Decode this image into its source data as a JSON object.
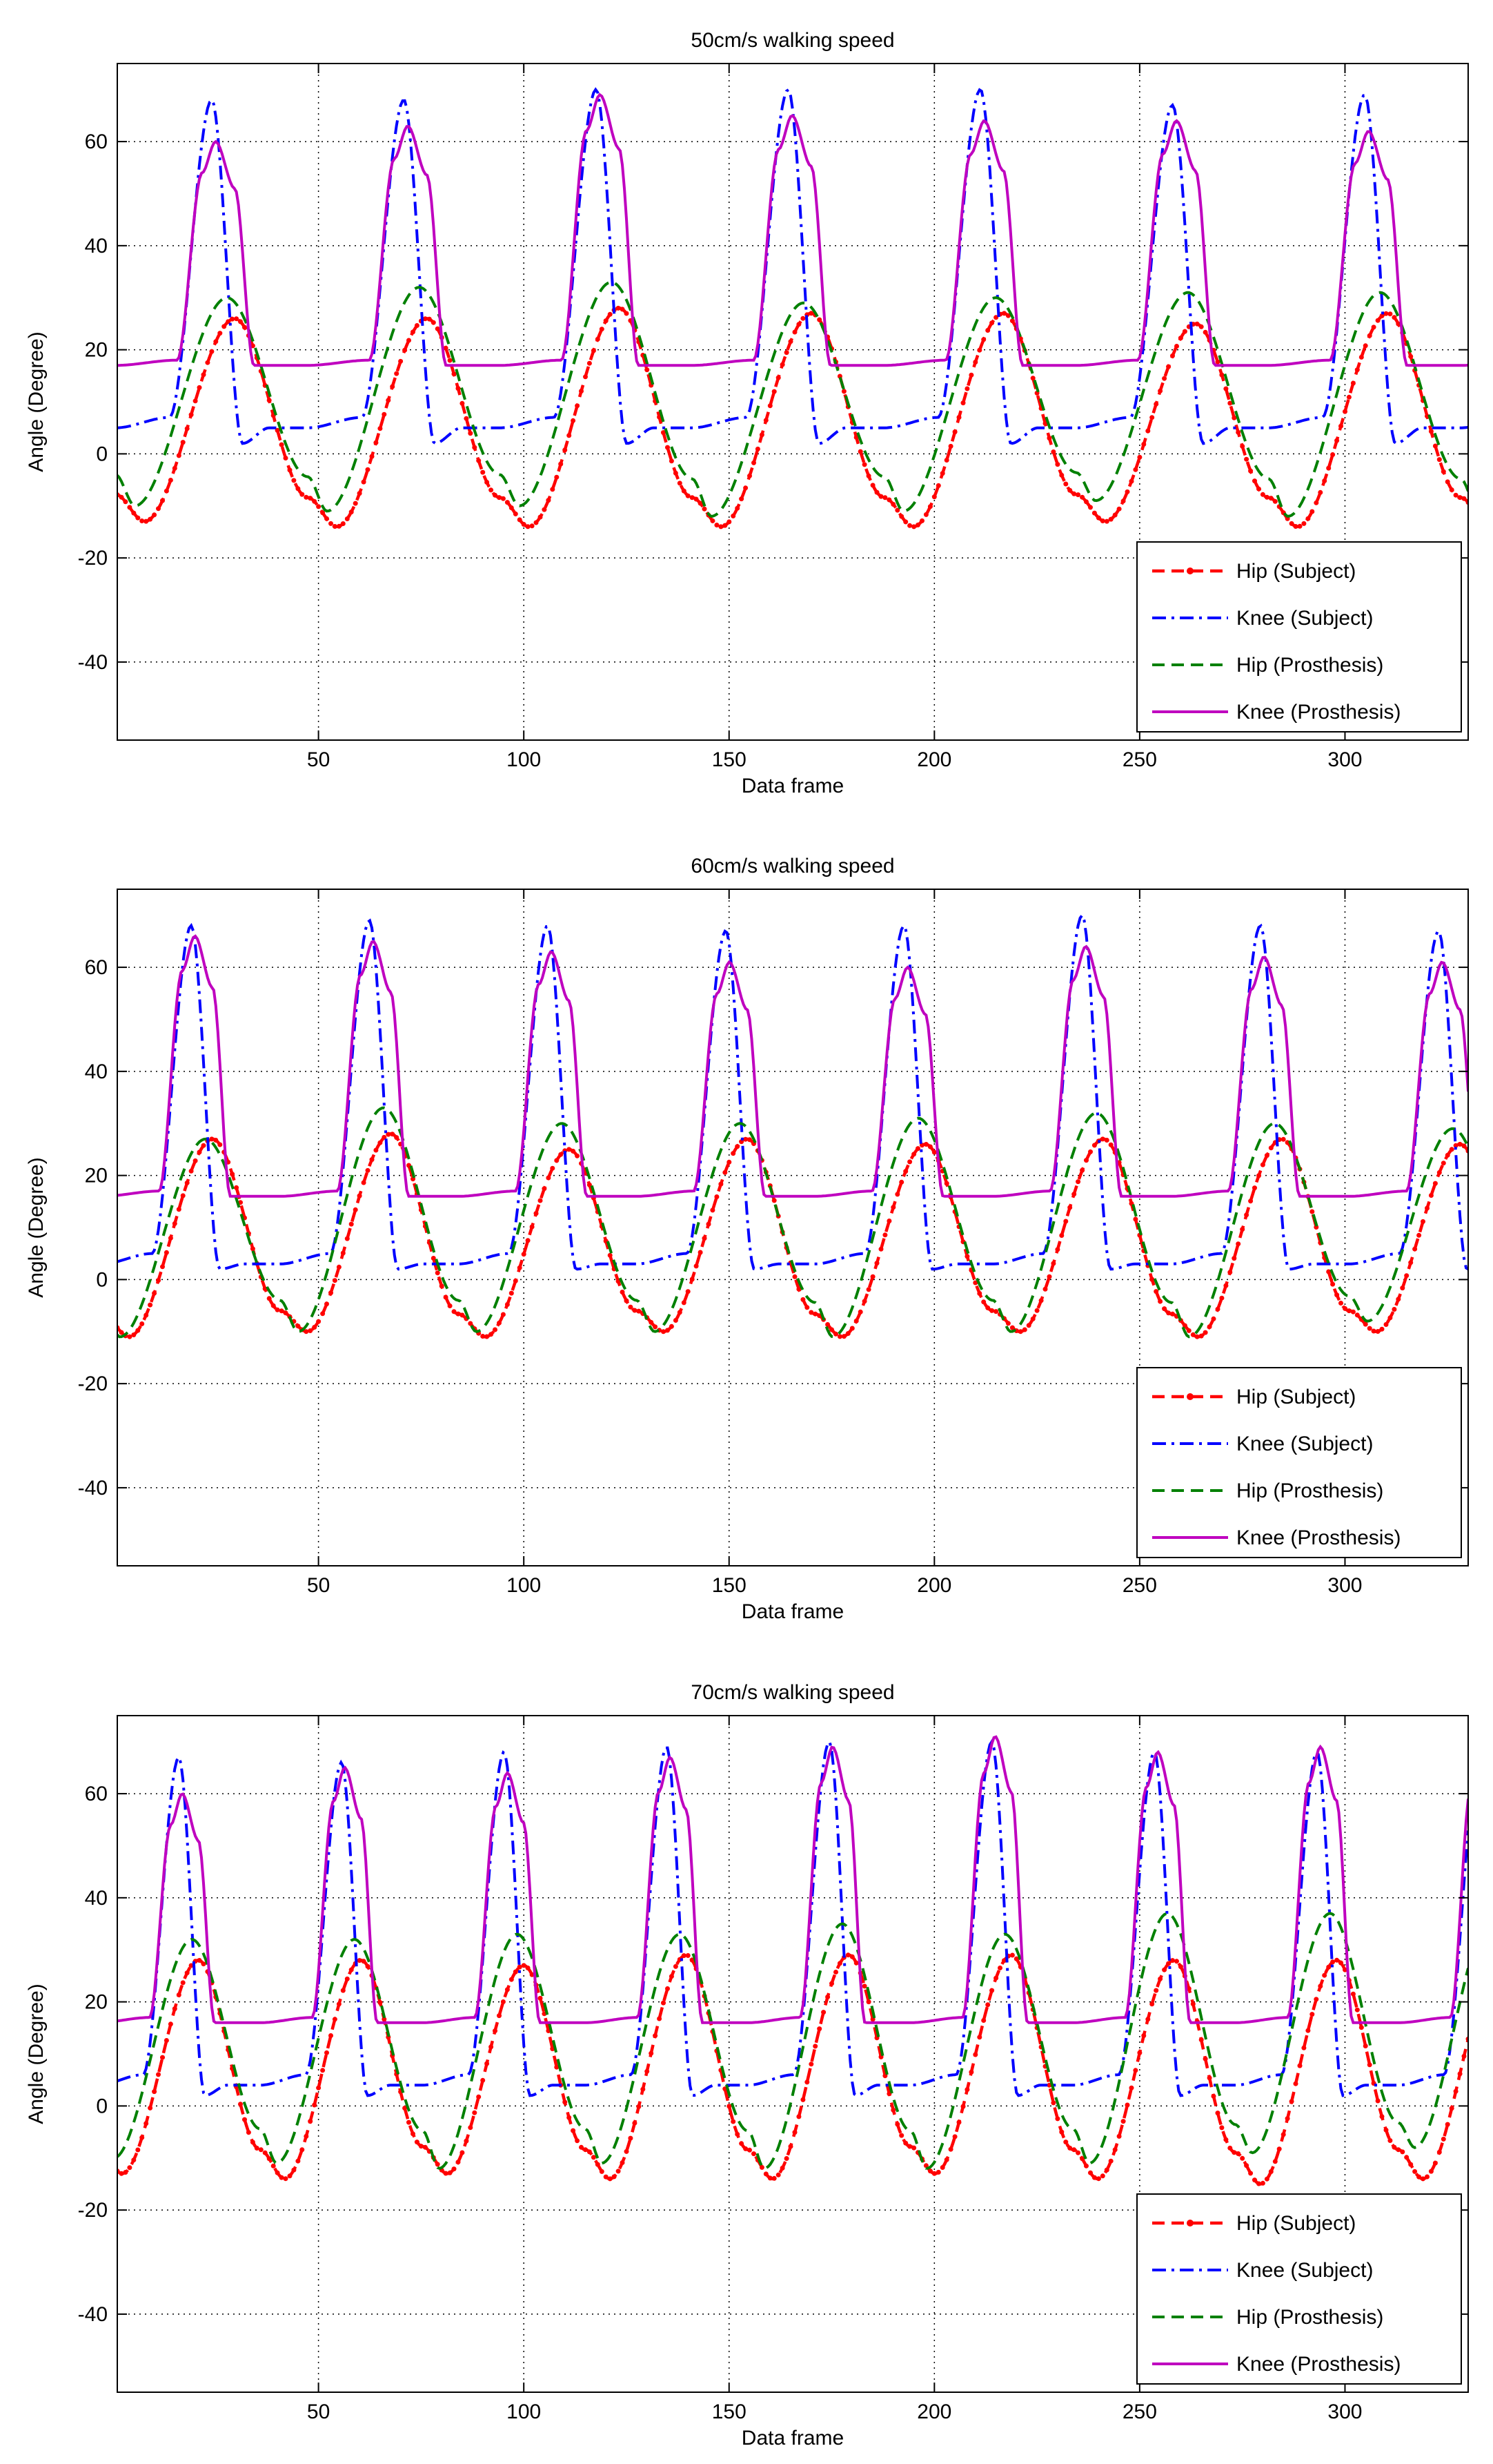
{
  "figure": {
    "panel_count": 3
  },
  "chart_data": [
    {
      "type": "line",
      "title": "50cm/s walking speed",
      "xlabel": "Data frame",
      "ylabel": "Angle (Degree)",
      "xlim": [
        1,
        330
      ],
      "ylim": [
        -55,
        75
      ],
      "xticks": [
        50,
        100,
        150,
        200,
        250,
        300
      ],
      "yticks": [
        -40,
        -20,
        0,
        20,
        40,
        60
      ],
      "grid": true,
      "legend_position": "bottom-right",
      "gait": {
        "period": 46.8,
        "phase": 24
      },
      "series": [
        {
          "name": "Hip (Subject)",
          "color": "#ff0000",
          "style": "dashed-marker",
          "peaks": [
            26,
            26,
            28,
            27,
            27,
            25,
            27
          ],
          "troughs": [
            -13,
            -14,
            -14,
            -14,
            -14,
            -13,
            -14,
            -14
          ]
        },
        {
          "name": "Knee (Subject)",
          "color": "#0000ff",
          "style": "dashdot",
          "peaks": [
            68,
            68,
            70,
            70,
            70,
            67,
            69
          ],
          "base": 5
        },
        {
          "name": "Hip (Prosthesis)",
          "color": "#008000",
          "style": "dashed",
          "peaks": [
            30,
            32,
            33,
            29,
            30,
            31,
            31
          ],
          "troughs": [
            -10,
            -11,
            -10,
            -12,
            -11,
            -9,
            -12,
            -12
          ]
        },
        {
          "name": "Knee (Prosthesis)",
          "color": "#bf00bf",
          "style": "solid",
          "peaks": [
            60,
            63,
            69,
            65,
            64,
            64,
            62
          ],
          "base": 17
        }
      ]
    },
    {
      "type": "line",
      "title": "60cm/s walking speed",
      "xlabel": "Data frame",
      "ylabel": "Angle (Degree)",
      "xlim": [
        1,
        330
      ],
      "ylim": [
        -55,
        75
      ],
      "xticks": [
        50,
        100,
        150,
        200,
        250,
        300
      ],
      "yticks": [
        -40,
        -20,
        0,
        20,
        40,
        60
      ],
      "grid": true,
      "legend_position": "bottom-right",
      "gait": {
        "period": 43.4,
        "phase": 19
      },
      "series": [
        {
          "name": "Hip (Subject)",
          "color": "#ff0000",
          "style": "dashed-marker",
          "peaks": [
            27,
            28,
            25,
            27,
            26,
            27,
            27,
            26
          ],
          "troughs": [
            -11,
            -10,
            -11,
            -10,
            -11,
            -10,
            -11,
            -10
          ]
        },
        {
          "name": "Knee (Subject)",
          "color": "#0000ff",
          "style": "dashdot",
          "peaks": [
            68,
            69,
            68,
            67,
            68,
            70,
            68,
            67
          ],
          "base": 3
        },
        {
          "name": "Hip (Prosthesis)",
          "color": "#008000",
          "style": "dashed",
          "peaks": [
            27,
            33,
            30,
            30,
            31,
            32,
            30,
            29
          ],
          "troughs": [
            -11,
            -10,
            -10,
            -10,
            -11,
            -10,
            -11,
            -8
          ]
        },
        {
          "name": "Knee (Prosthesis)",
          "color": "#bf00bf",
          "style": "solid",
          "peaks": [
            66,
            65,
            63,
            61,
            60,
            64,
            62,
            61
          ],
          "base": 16
        }
      ]
    },
    {
      "type": "line",
      "title": "70cm/s walking speed",
      "xlabel": "Data frame",
      "ylabel": "Angle (Degree)",
      "xlim": [
        1,
        330
      ],
      "ylim": [
        -55,
        75
      ],
      "xticks": [
        50,
        100,
        150,
        200,
        250,
        300
      ],
      "yticks": [
        -40,
        -20,
        0,
        20,
        40,
        60
      ],
      "grid": true,
      "legend_position": "bottom-right",
      "gait": {
        "period": 39.6,
        "phase": 16
      },
      "series": [
        {
          "name": "Hip (Subject)",
          "color": "#ff0000",
          "style": "dashed-marker",
          "peaks": [
            28,
            28,
            27,
            29,
            29,
            29,
            28,
            28
          ],
          "troughs": [
            -13,
            -14,
            -13,
            -14,
            -14,
            -13,
            -14,
            -15,
            -14
          ]
        },
        {
          "name": "Knee (Subject)",
          "color": "#0000ff",
          "style": "dashdot",
          "peaks": [
            67,
            66,
            68,
            69,
            70,
            70,
            68,
            68
          ],
          "base": 4
        },
        {
          "name": "Hip (Prosthesis)",
          "color": "#008000",
          "style": "dashed",
          "peaks": [
            32,
            32,
            33,
            33,
            35,
            33,
            37,
            37
          ],
          "troughs": [
            -10,
            -11,
            -12,
            -11,
            -12,
            -12,
            -11,
            -9,
            -8
          ]
        },
        {
          "name": "Knee (Prosthesis)",
          "color": "#bf00bf",
          "style": "solid",
          "peaks": [
            60,
            65,
            64,
            67,
            69,
            71,
            68,
            69
          ],
          "base": 16
        }
      ]
    }
  ]
}
